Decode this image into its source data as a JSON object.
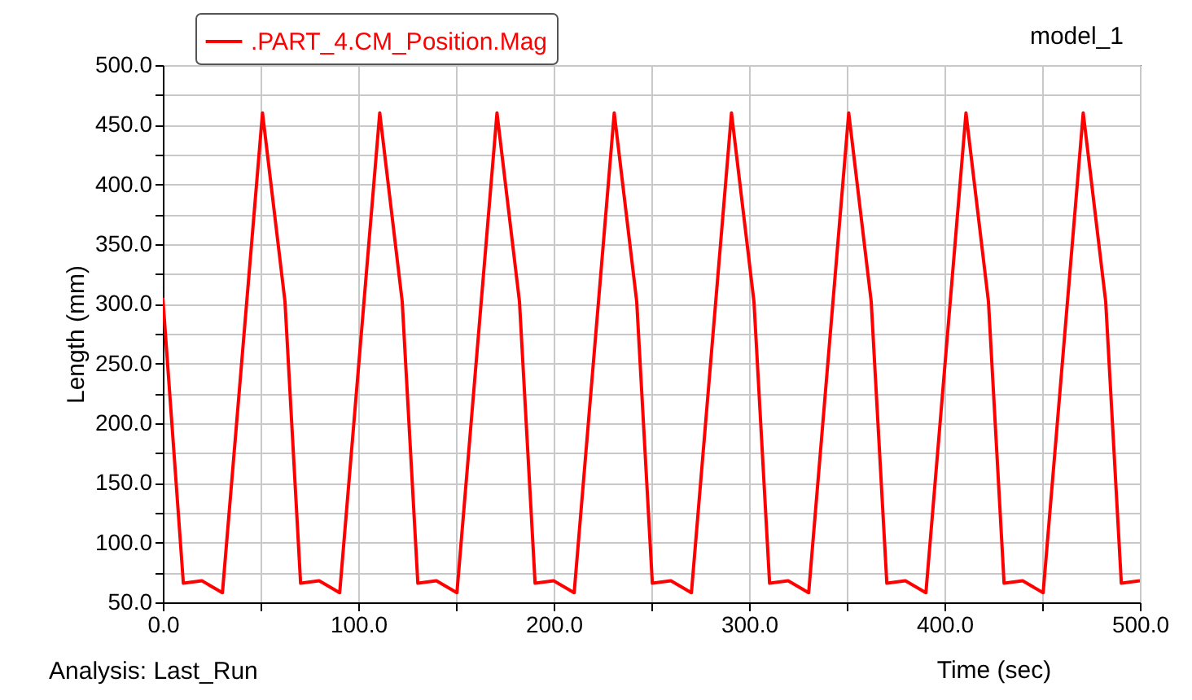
{
  "chart_data": {
    "type": "line",
    "title": "model_1",
    "xlabel": "Time (sec)",
    "ylabel": "Length (mm)",
    "annotations": [
      "Analysis:  Last_Run"
    ],
    "x": [
      0,
      10.5,
      20,
      30.5,
      51,
      62.5,
      70.5,
      80,
      90.5,
      111,
      122.5,
      130.5,
      140,
      150.5,
      171,
      182.5,
      190.5,
      200,
      210.5,
      231,
      242.5,
      250.5,
      260,
      270.5,
      291,
      302.5,
      310.5,
      320,
      330.5,
      351,
      362.5,
      370.5,
      380,
      390.5,
      411,
      422.5,
      430.5,
      440,
      450.5,
      471,
      482.5,
      490.5,
      500
    ],
    "series": [
      {
        "name": ".PART_4.CM_Position.Mag",
        "color": "#ff0000",
        "values": [
          305,
          66,
          68,
          58,
          460,
          302,
          66,
          68,
          58,
          460,
          302,
          66,
          68,
          58,
          460,
          302,
          66,
          68,
          58,
          460,
          302,
          66,
          68,
          58,
          460,
          302,
          66,
          68,
          58,
          460,
          302,
          66,
          68,
          58,
          460,
          302,
          66,
          68,
          58,
          460,
          302,
          66,
          68
        ]
      }
    ],
    "xlim": [
      0,
      500
    ],
    "xticks": [
      {
        "value": 0,
        "label": "0.0"
      },
      {
        "value": 50,
        "label": null
      },
      {
        "value": 100,
        "label": "100.0"
      },
      {
        "value": 150,
        "label": null
      },
      {
        "value": 200,
        "label": "200.0"
      },
      {
        "value": 250,
        "label": null
      },
      {
        "value": 300,
        "label": "300.0"
      },
      {
        "value": 350,
        "label": null
      },
      {
        "value": 400,
        "label": "400.0"
      },
      {
        "value": 450,
        "label": null
      },
      {
        "value": 500,
        "label": "500.0"
      }
    ],
    "ylim": [
      50,
      500
    ],
    "yticks": [
      {
        "value": 50,
        "label": "50.0"
      },
      {
        "value": 75,
        "label": null
      },
      {
        "value": 100,
        "label": "100.0"
      },
      {
        "value": 125,
        "label": null
      },
      {
        "value": 150,
        "label": "150.0"
      },
      {
        "value": 175,
        "label": null
      },
      {
        "value": 200,
        "label": "200.0"
      },
      {
        "value": 225,
        "label": null
      },
      {
        "value": 250,
        "label": "250.0"
      },
      {
        "value": 275,
        "label": null
      },
      {
        "value": 300,
        "label": "300.0"
      },
      {
        "value": 325,
        "label": null
      },
      {
        "value": 350,
        "label": "350.0"
      },
      {
        "value": 375,
        "label": null
      },
      {
        "value": 400,
        "label": "400.0"
      },
      {
        "value": 425,
        "label": null
      },
      {
        "value": 450,
        "label": "450.0"
      },
      {
        "value": 475,
        "label": null
      },
      {
        "value": 500,
        "label": "500.0"
      }
    ],
    "grid": true,
    "legend": "top left"
  }
}
